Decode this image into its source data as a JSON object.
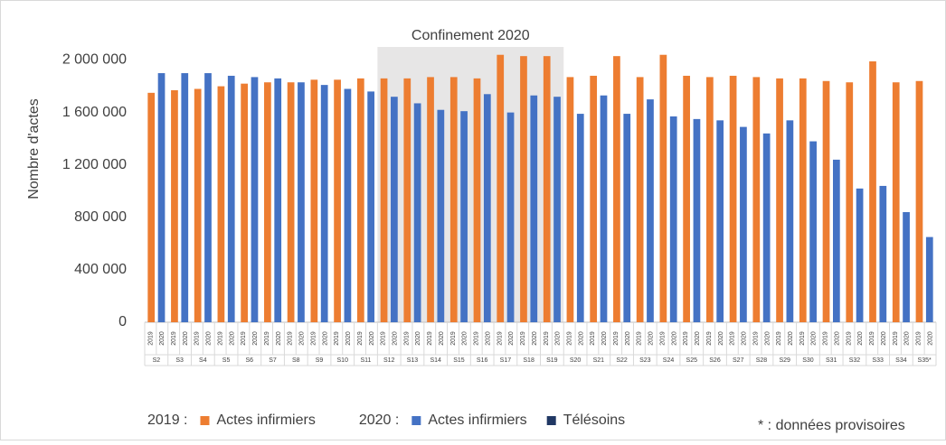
{
  "chart_data": {
    "type": "bar",
    "y_axis_label": "Nombre d'actes",
    "categories": [
      "S2",
      "S3",
      "S4",
      "S5",
      "S6",
      "S7",
      "S8",
      "S9",
      "S10",
      "S11",
      "S12",
      "S13",
      "S14",
      "S15",
      "S16",
      "S17",
      "S18",
      "S19",
      "S20",
      "S21",
      "S22",
      "S23",
      "S24",
      "S25",
      "S26",
      "S27",
      "S28",
      "S29",
      "S30",
      "S31",
      "S32",
      "S33",
      "S34",
      "S35*"
    ],
    "subcategories": [
      "2019",
      "2020"
    ],
    "series": [
      {
        "legend_prefix": "2019 :",
        "name": "Actes infirmiers",
        "color": "#ed7d31",
        "values": [
          1750000,
          1770000,
          1780000,
          1800000,
          1820000,
          1830000,
          1830000,
          1850000,
          1850000,
          1860000,
          1860000,
          1860000,
          1870000,
          1870000,
          1860000,
          2040000,
          2030000,
          2030000,
          1870000,
          1880000,
          2030000,
          1870000,
          2040000,
          1880000,
          1870000,
          1880000,
          1870000,
          1860000,
          1860000,
          1840000,
          1830000,
          1990000,
          1830000,
          1840000
        ]
      },
      {
        "legend_prefix": "2020 :",
        "name": "Actes infirmiers",
        "color": "#4472c4",
        "values": [
          1900000,
          1900000,
          1900000,
          1880000,
          1870000,
          1860000,
          1830000,
          1810000,
          1780000,
          1760000,
          1720000,
          1670000,
          1620000,
          1610000,
          1740000,
          1600000,
          1730000,
          1720000,
          1590000,
          1730000,
          1590000,
          1700000,
          1570000,
          1550000,
          1540000,
          1490000,
          1440000,
          1540000,
          1380000,
          1240000,
          1020000,
          1040000,
          840000,
          650000
        ]
      },
      {
        "name": "Télésoins",
        "color": "#203864"
      }
    ],
    "ylim": [
      0,
      2100000
    ],
    "yticks": [
      0,
      {
        "value": 400000,
        "label": "400 000"
      },
      {
        "value": 800000,
        "label": "800 000"
      },
      {
        "value": 1200000,
        "label": "1 200 000"
      },
      {
        "value": 1600000,
        "label": "1 600 000"
      },
      {
        "value": 2000000,
        "label": "2 000 000"
      }
    ],
    "grid": false,
    "shaded_region": {
      "label": "Confinement 2020",
      "from": "S12",
      "to": "S19",
      "color": "#e7e6e6"
    },
    "footnote": "* : données provisoires"
  }
}
